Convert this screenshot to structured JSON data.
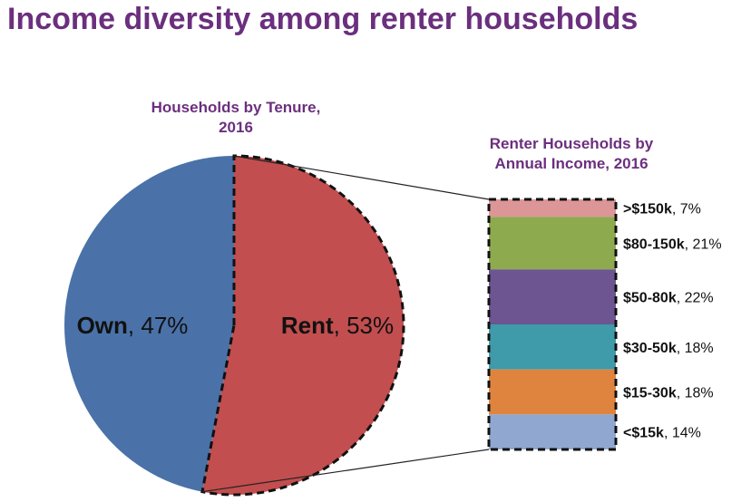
{
  "page": {
    "title": "Income diversity among renter households"
  },
  "colors": {
    "title": "#6b2f7e",
    "own": "#4a72a8",
    "rent": "#c24e4f",
    "gt150": "#dc9698",
    "80-150": "#8eaa4f",
    "50-80": "#6c5591",
    "30-50": "#3f9aaa",
    "15-30": "#df843f",
    "lt15": "#90a8cf"
  },
  "chart_data": [
    {
      "type": "pie",
      "title": "Households by Tenure, 2016",
      "title_lines": [
        "Households by Tenure,",
        "2016"
      ],
      "slices": [
        {
          "name": "Own",
          "value": 47,
          "label": "47%",
          "color": "#4a72a8"
        },
        {
          "name": "Rent",
          "value": 53,
          "label": "53%",
          "color": "#c24e4f"
        }
      ]
    },
    {
      "type": "bar",
      "stacked": true,
      "title": "Renter Households by Annual Income, 2016",
      "title_lines": [
        "Renter Households by",
        "Annual Income, 2016"
      ],
      "segments": [
        {
          "name": ">$150k",
          "value": 7,
          "label": "7%",
          "color": "#dc9698"
        },
        {
          "name": "$80-150k",
          "value": 21,
          "label": "21%",
          "color": "#8eaa4f"
        },
        {
          "name": "$50-80k",
          "value": 22,
          "label": "22%",
          "color": "#6c5591"
        },
        {
          "name": "$30-50k",
          "value": 18,
          "label": "18%",
          "color": "#3f9aaa"
        },
        {
          "name": "$15-30k",
          "value": 18,
          "label": "18%",
          "color": "#df843f"
        },
        {
          "name": "<$15k",
          "value": 14,
          "label": "14%",
          "color": "#90a8cf"
        }
      ]
    }
  ]
}
